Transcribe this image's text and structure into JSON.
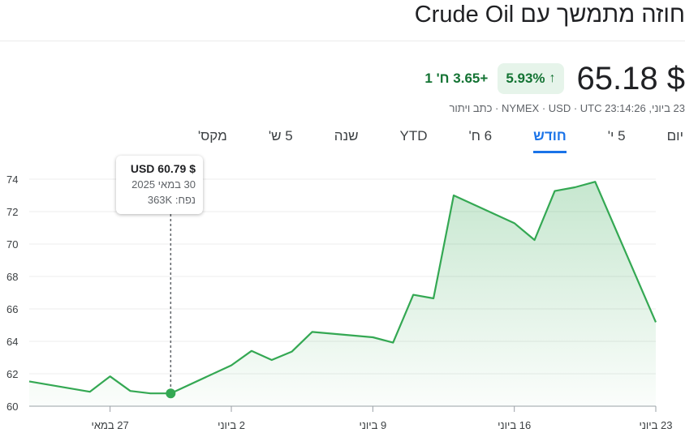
{
  "header": {
    "title": "חוזה מתמשך עם Crude Oil"
  },
  "quote": {
    "price": "$ 65.18",
    "change_percent": "5.93%",
    "change_abs": "+3.65 ח' 1",
    "meta": "23 ביוני, 23:14:26 NYMEX · USD · UTC · כתב ויתור",
    "colors": {
      "positive": "#137333",
      "chip_bg": "#e6f4ea",
      "line": "#34a853"
    },
    "icon": "arrow-up-icon"
  },
  "tabs": [
    {
      "label": "יום",
      "active": false
    },
    {
      "label": "5 י'",
      "active": false
    },
    {
      "label": "חודש",
      "active": true
    },
    {
      "label": "6 ח'",
      "active": false
    },
    {
      "label": "YTD",
      "active": false
    },
    {
      "label": "שנה",
      "active": false
    },
    {
      "label": "5 ש'",
      "active": false
    },
    {
      "label": "מקס'",
      "active": false
    }
  ],
  "tooltip": {
    "price": "$ USD 60.79",
    "date": "30 במאי 2025",
    "volume": "נפח: 363K"
  },
  "chart_data": {
    "type": "area",
    "x": [
      "2025-05-23",
      "2025-05-26",
      "2025-05-27",
      "2025-05-28",
      "2025-05-29",
      "2025-05-30",
      "2025-06-02",
      "2025-06-03",
      "2025-06-04",
      "2025-06-05",
      "2025-06-06",
      "2025-06-09",
      "2025-06-10",
      "2025-06-11",
      "2025-06-12",
      "2025-06-13",
      "2025-06-16",
      "2025-06-17",
      "2025-06-18",
      "2025-06-19",
      "2025-06-20",
      "2025-06-23"
    ],
    "values": [
      61.53,
      60.89,
      61.84,
      60.94,
      60.79,
      60.79,
      62.52,
      63.41,
      62.85,
      63.37,
      64.58,
      64.25,
      63.92,
      66.87,
      66.65,
      73.0,
      71.29,
      70.25,
      73.27,
      73.5,
      73.84,
      65.18
    ],
    "highlight_index": 5,
    "y_ticks": [
      60,
      62,
      64,
      66,
      68,
      70,
      72,
      74
    ],
    "ylim": [
      60,
      74.8
    ],
    "x_tick_labels": [
      "27 במאי",
      "2 ביוני",
      "9 ביוני",
      "16 ביוני",
      "23 ביוני"
    ],
    "x_tick_dates": [
      "2025-05-27",
      "2025-06-02",
      "2025-06-09",
      "2025-06-16",
      "2025-06-23"
    ],
    "grid": true
  }
}
